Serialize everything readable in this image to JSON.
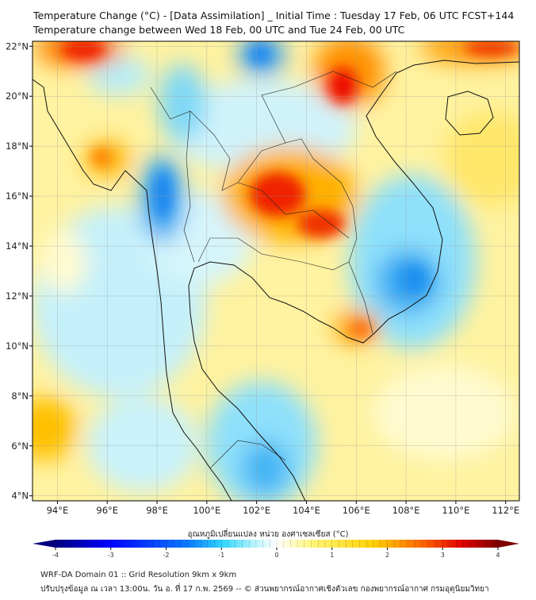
{
  "header": {
    "title_line1": "Temperature Change (°C) - [Data Assimilation] _ Initial Time : Tuesday 17 Feb, 06 UTC FCST+144",
    "title_line2": "Temperature change between Wed 18 Feb, 00 UTC and Tue 24 Feb, 00 UTC"
  },
  "map": {
    "lon_labels": [
      "94°E",
      "96°E",
      "98°E",
      "100°E",
      "102°E",
      "104°E",
      "106°E",
      "108°E",
      "110°E",
      "112°E"
    ],
    "lon_values": [
      94,
      96,
      98,
      100,
      102,
      104,
      106,
      108,
      110,
      112
    ],
    "lat_labels": [
      "22°N",
      "20°N",
      "18°N",
      "16°N",
      "14°N",
      "12°N",
      "10°N",
      "8°N",
      "6°N",
      "4°N"
    ],
    "lat_values": [
      22,
      20,
      18,
      16,
      14,
      12,
      10,
      8,
      6,
      4
    ],
    "extent": {
      "lon": [
        93,
        112.55
      ],
      "lat": [
        3.8,
        22.2
      ]
    }
  },
  "colorbar": {
    "title": "อุณหภูมิเปลี่ยนแปลง หน่วย องศาเซลเซียส (°C)",
    "ticks": [
      "-4",
      "-3",
      "-2",
      "-1",
      "0",
      "1",
      "2",
      "3",
      "4"
    ],
    "range": [
      -4,
      4
    ],
    "colors": [
      "#00007f",
      "#0000ff",
      "#0a7cff",
      "#35d8ff",
      "#ffffff",
      "#fff67a",
      "#ffd000",
      "#ff5a00",
      "#e00000",
      "#7f0000"
    ]
  },
  "footer": {
    "line1": "WRF-DA Domain 01 :: Grid Resolution 9km x 9km",
    "line2": "ปรับปรุงข้อมูล ณ เวลา 13:00น. วัน อ. ที่ 17 ก.พ. 2569 -- © ส่วนพยากรณ์อากาศเชิงตัวเลข กองพยากรณ์อากาศ กรมอุตุนิยมวิทยา"
  }
}
